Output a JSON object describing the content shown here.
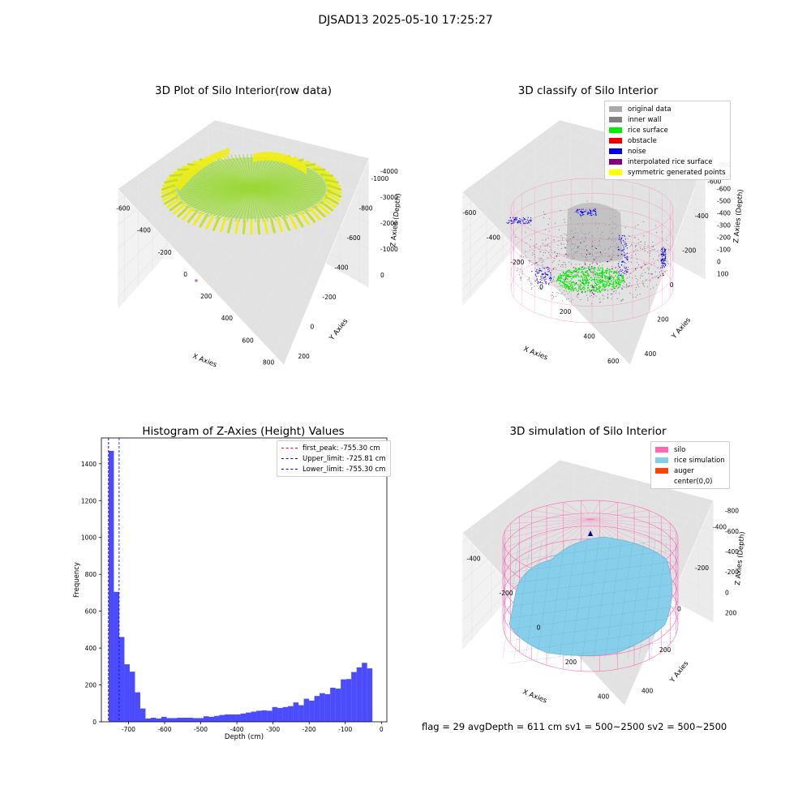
{
  "figure_title": "DJSAD13 2025-05-10 17:25:27",
  "colors": {
    "yellow": "#f2ee10",
    "green_yellow": "#9ad838",
    "gray_original": "#aaaaaa",
    "inner_wall": "#808080",
    "rice_surface": "#00ee00",
    "obstacle": "#ee0000",
    "noise": "#0000ee",
    "interpolated": "#800080",
    "symmetric": "#ffff00",
    "silo": "#ff69b4",
    "rice_sim": "#87ceeb",
    "auger": "#ff4500",
    "hist": "#0000ff"
  },
  "panel1": {
    "title": "3D Plot of Silo Interior(row data)",
    "xlabel": "X Axies",
    "ylabel": "Y Axies",
    "zlabel": "Z Axies (Depth)",
    "xticks": [
      "-600",
      "-400",
      "-200",
      "0",
      "200",
      "400",
      "600",
      "800"
    ],
    "yticks": [
      "200",
      "0",
      "-200",
      "-400",
      "-600",
      "-800",
      "-1000"
    ],
    "zticks": [
      "0",
      "-1000",
      "-2000",
      "-3000",
      "-4000"
    ]
  },
  "panel2": {
    "title": "3D classify of Silo Interior",
    "xlabel": "X Axies",
    "ylabel": "Y Axies",
    "zlabel": "Z Axies (Depth)",
    "xticks": [
      "-600",
      "-400",
      "-200",
      "0",
      "200",
      "400",
      "600"
    ],
    "yticks": [
      "400",
      "200",
      "0",
      "-200",
      "-400",
      "-600"
    ],
    "zticks": [
      "100",
      "0",
      "-100",
      "-200",
      "-300",
      "-400",
      "-500",
      "-600",
      "-700",
      "-800"
    ],
    "legend": [
      {
        "label": "original data",
        "color": "#aaaaaa"
      },
      {
        "label": "inner wall",
        "color": "#808080"
      },
      {
        "label": "rice surface",
        "color": "#00ee00"
      },
      {
        "label": "obstacle",
        "color": "#ee0000"
      },
      {
        "label": "noise",
        "color": "#0000ee"
      },
      {
        "label": "interpolated rice surface",
        "color": "#800080"
      },
      {
        "label": "symmetric generated points",
        "color": "#ffff00"
      }
    ]
  },
  "panel4": {
    "title": "3D simulation of Silo Interior",
    "xlabel": "X Axies",
    "ylabel": "Y Axies",
    "zlabel": "Z Axies (Depth)",
    "xticks": [
      "-400",
      "-200",
      "0",
      "200",
      "400"
    ],
    "yticks": [
      "400",
      "200",
      "0",
      "-200",
      "-400"
    ],
    "zticks": [
      "200",
      "0",
      "-200",
      "-400",
      "-600",
      "-800"
    ],
    "legend": [
      {
        "label": "silo",
        "color": "#ff69b4"
      },
      {
        "label": "rice simulation",
        "color": "#87ceeb"
      },
      {
        "label": "auger",
        "color": "#ff4500"
      },
      {
        "label": "center(0,0)",
        "color": "#ffffff"
      }
    ]
  },
  "footer": {
    "text": "flag = 29  avgDepth = 611 cm  sv1 = 500~2500  sv2 = 500~2500"
  },
  "chart_data": [
    {
      "type": "histogram",
      "title": "Histogram of Z-Axies (Height) Values",
      "xlabel": "Depth (cm)",
      "ylabel": "Frequency",
      "xlim": [
        -775,
        15
      ],
      "ylim": [
        0,
        1540
      ],
      "xticks": [
        -700,
        -600,
        -500,
        -400,
        -300,
        -200,
        -100,
        0
      ],
      "yticks": [
        0,
        200,
        400,
        600,
        800,
        1000,
        1200,
        1400
      ],
      "bin_start": -755,
      "bin_width": 14.6,
      "values": [
        1470,
        705,
        460,
        312,
        272,
        160,
        72,
        18,
        22,
        18,
        27,
        20,
        20,
        22,
        22,
        22,
        20,
        20,
        30,
        27,
        32,
        37,
        40,
        40,
        40,
        45,
        50,
        55,
        60,
        62,
        60,
        80,
        75,
        80,
        85,
        105,
        90,
        125,
        115,
        140,
        155,
        150,
        185,
        180,
        230,
        232,
        270,
        295,
        320,
        290
      ],
      "vlines": [
        {
          "label": "first_peak: -755.30 cm",
          "x": -755.3,
          "color": "#ff0000"
        },
        {
          "label": "Upper_limit: -725.81 cm",
          "x": -725.81,
          "color": "#0000ff"
        },
        {
          "label": "Lower_limit: -755.30 cm",
          "x": -755.3,
          "color": "#0000ff"
        }
      ]
    }
  ]
}
